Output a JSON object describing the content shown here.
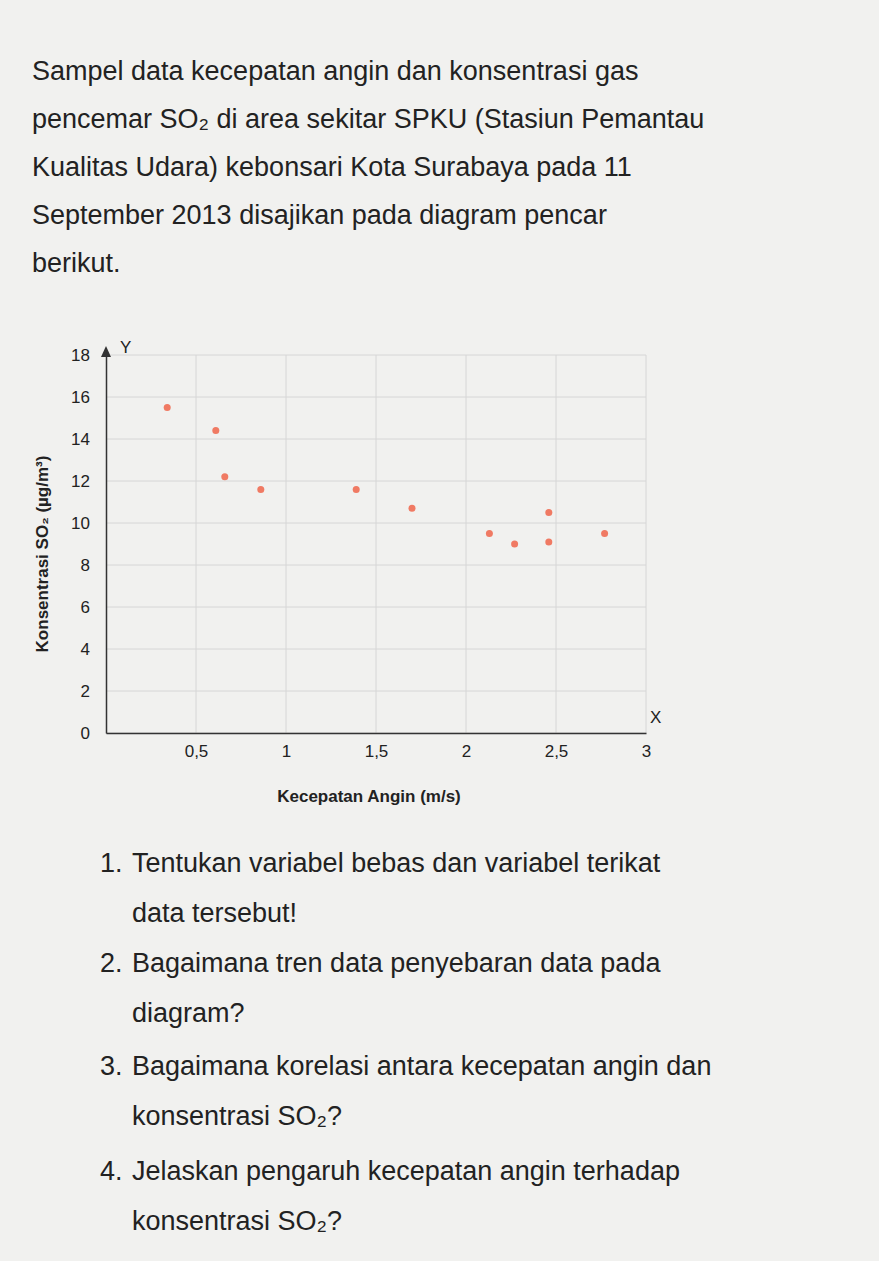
{
  "intro_lines": [
    "Sampel data kecepatan angin dan konsentrasi gas",
    "pencemar SO₂ di area sekitar SPKU (Stasiun Pemantau",
    "Kualitas Udara) kebonsari Kota Surabaya pada 11",
    "September 2013 disajikan pada diagram pencar",
    "berikut."
  ],
  "chart_data": {
    "type": "scatter",
    "x_label": "Kecepatan Angin (m/s)",
    "y_label": "Konsentrasi SO₂ (µg/m³)",
    "x_axis_letter": "X",
    "y_axis_letter": "Y",
    "x": [
      0.34,
      0.61,
      0.66,
      0.86,
      1.39,
      1.7,
      2.13,
      2.27,
      2.46,
      2.46,
      2.77
    ],
    "values": [
      15.5,
      14.4,
      12.2,
      11.6,
      11.6,
      10.7,
      9.5,
      9.0,
      10.5,
      9.1,
      9.5
    ],
    "color": "#f07a63",
    "marker": "circle",
    "grid": true,
    "xlim": [
      0,
      3
    ],
    "ylim": [
      0,
      18
    ],
    "xticks": [
      {
        "value": 0.5,
        "label": "0,5"
      },
      1,
      {
        "value": 1.5,
        "label": "1,5"
      },
      2,
      {
        "value": 2.5,
        "label": "2,5"
      },
      3
    ],
    "yticks": [
      0,
      2,
      4,
      6,
      8,
      10,
      12,
      14,
      16,
      18
    ]
  },
  "questions": [
    {
      "number": "1.",
      "lines": [
        "Tentukan variabel bebas dan variabel terikat",
        "data tersebut!"
      ]
    },
    {
      "number": "2.",
      "lines": [
        "Bagaimana tren data penyebaran data pada",
        "diagram?"
      ]
    },
    {
      "number": "3.",
      "lines": [
        "Bagaimana korelasi antara kecepatan angin dan",
        "konsentrasi SO₂?"
      ]
    },
    {
      "number": "4.",
      "lines": [
        "Jelaskan pengaruh kecepatan angin terhadap",
        "konsentrasi SO₂?"
      ]
    }
  ]
}
